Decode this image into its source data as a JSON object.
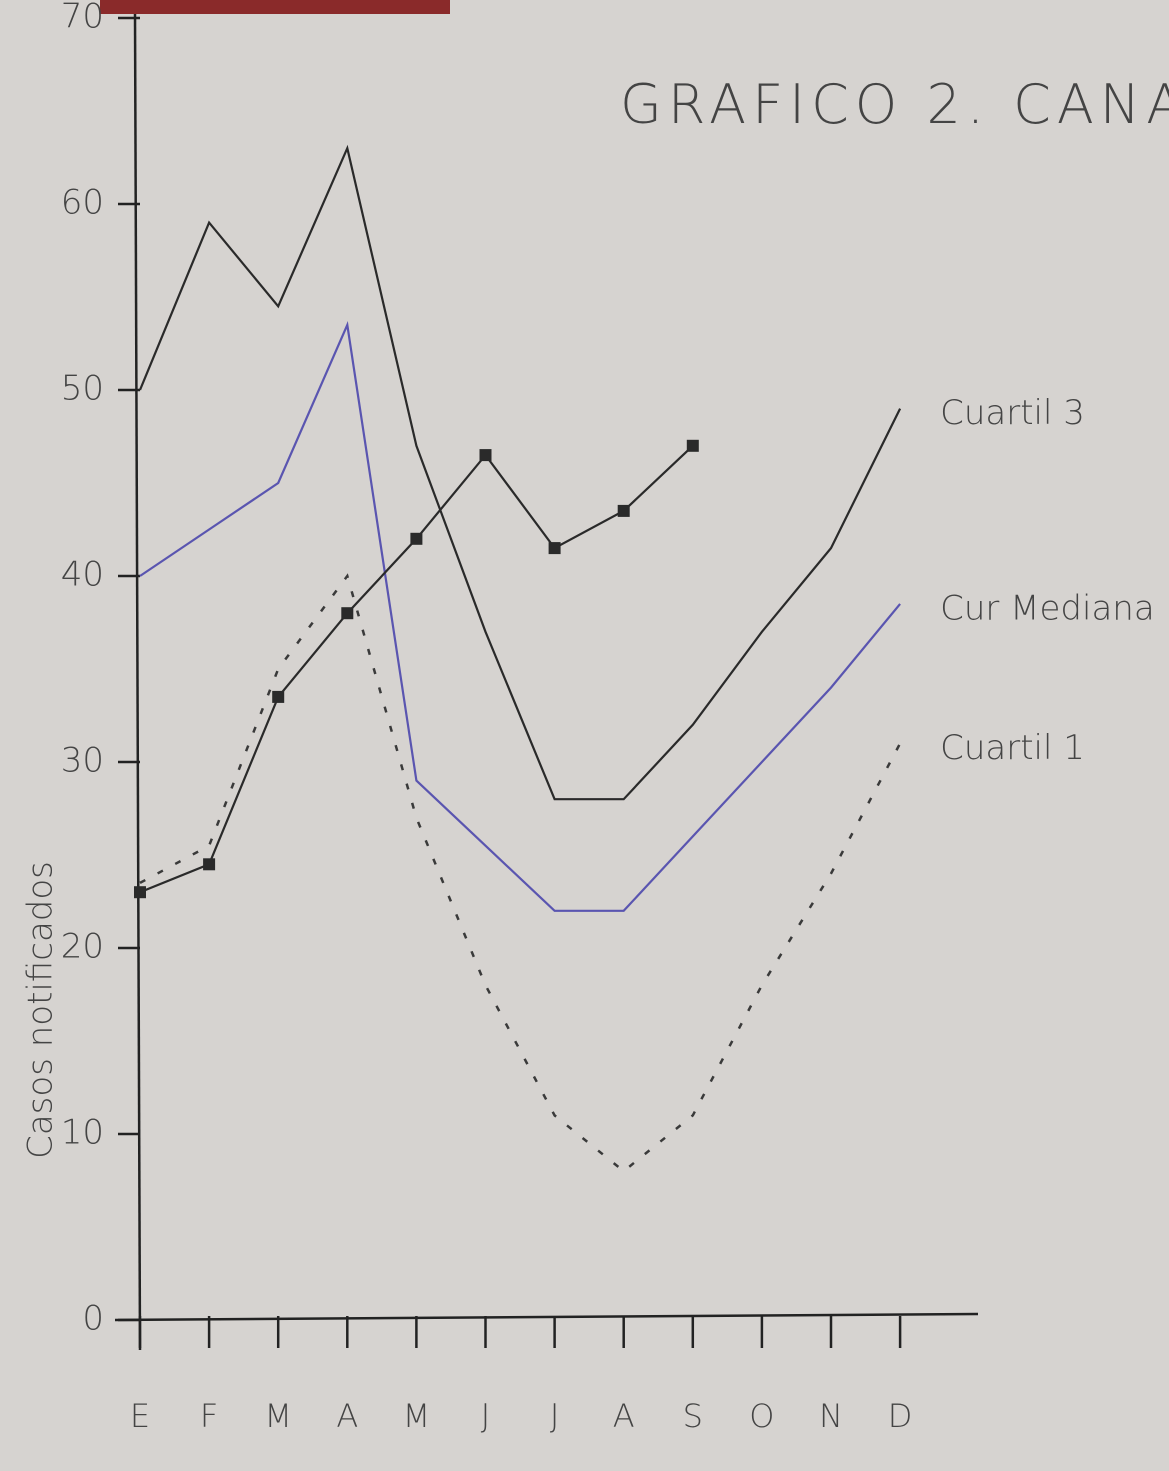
{
  "chart_data": {
    "type": "line",
    "title": "GRAFICO 2. CANA",
    "y_label": "Casos notificados",
    "categories": [
      "E",
      "F",
      "M",
      "A",
      "M",
      "J",
      "J",
      "A",
      "S",
      "O",
      "N",
      "D"
    ],
    "series": [
      {
        "name": "Cuartil 3",
        "color": "#2a2a2a",
        "dash": false,
        "markers": false,
        "values": [
          50,
          59,
          54.5,
          63,
          47,
          37,
          28,
          28,
          32,
          37,
          41.5,
          49
        ]
      },
      {
        "name": "Cur Mediana",
        "color": "#5a55b0",
        "dash": false,
        "markers": false,
        "values": [
          40,
          42.5,
          45,
          53.5,
          29,
          25.5,
          22,
          22,
          26,
          30,
          34,
          38.5
        ]
      },
      {
        "name": "Cuartil 1",
        "color": "#3a3a3a",
        "dash": true,
        "markers": false,
        "values": [
          23.5,
          25.5,
          35,
          40,
          27,
          18,
          11,
          8,
          11,
          18,
          24,
          31
        ]
      },
      {
        "color": "#2a2a2a",
        "dash": false,
        "markers": true,
        "values": [
          23,
          24.5,
          33.5,
          38,
          42,
          46.5,
          41.5,
          43.5,
          47,
          null,
          null,
          null
        ]
      }
    ],
    "ylim": [
      0,
      70
    ],
    "yticks": [
      0,
      10,
      20,
      30,
      40,
      50,
      60,
      70
    ],
    "grid": false
  }
}
